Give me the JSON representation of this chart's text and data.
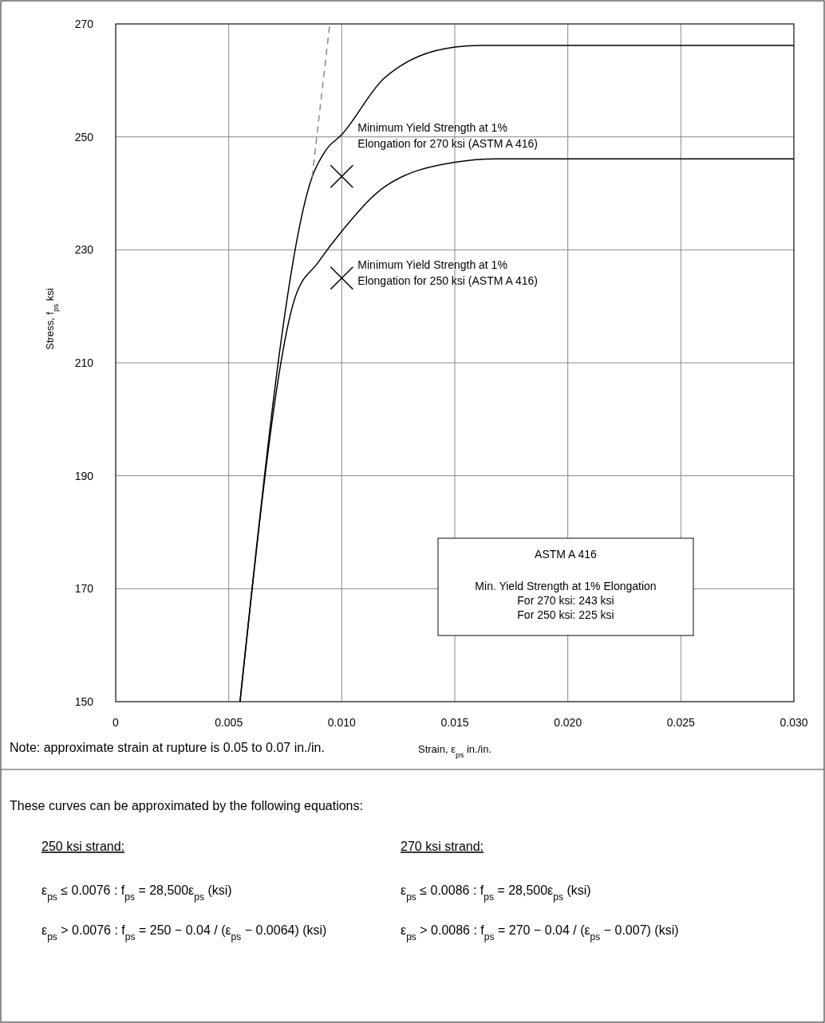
{
  "chart_data": {
    "type": "line",
    "xlabel": "Strain, ε$_{ps}$ in./in.",
    "ylabel": "Stress, f$_{ps}$ ksi",
    "xlim": [
      0,
      0.03
    ],
    "ylim": [
      150,
      270
    ],
    "xticks": [
      0,
      {
        "value": 0.005,
        "label": "0.005"
      },
      {
        "value": 0.01,
        "label": "0.010"
      },
      {
        "value": 0.015,
        "label": "0.015"
      },
      {
        "value": 0.02,
        "label": "0.020"
      },
      {
        "value": 0.025,
        "label": "0.025"
      },
      {
        "value": 0.03,
        "label": "0.030"
      }
    ],
    "yticks": [
      150,
      170,
      190,
      210,
      230,
      250,
      270
    ],
    "grid": true,
    "series": [
      {
        "color": "#000000",
        "line_style": "solid",
        "x": [
          0.0055,
          0.00869,
          0.00929,
          0.01,
          0.01188,
          0.015,
          0.01614,
          0.03
        ],
        "values": [
          150,
          242.9,
          247.6,
          250.4,
          260.4,
          265.9,
          266.2,
          266.2
        ]
      },
      {
        "color": "#000000",
        "line_style": "solid",
        "x": [
          0.0055,
          0.00794,
          0.00894,
          0.01,
          0.01188,
          0.015,
          0.01684,
          0.03
        ],
        "values": [
          150,
          221.6,
          227.7,
          233.3,
          241.1,
          245.5,
          246.1,
          246.1
        ]
      },
      {
        "color": "#888888",
        "line_style": "dashed",
        "x": [
          0.00869,
          0.00947
        ],
        "values": [
          242.9,
          270
        ]
      },
      {
        "type": "scatter",
        "color": "#000000",
        "marker": "cross",
        "x": [
          0.01,
          0.01
        ],
        "values": [
          243,
          225
        ]
      }
    ],
    "annotations": [
      {
        "text": "Minimum Yield Strength at 1%\nElongation for 270 ksi (ASTM A 416)",
        "x": 0.01,
        "y": 243
      },
      {
        "text": "Minimum Yield Strength at 1%\nElongation for 250 ksi (ASTM A 416)",
        "x": 0.01,
        "y": 225
      },
      "ASTM A 416",
      "Min. Yield Strength at 1% Elongation",
      "For 270 ksi:  243 ksi",
      "For 250 ksi:  225 ksi",
      "Note: approximate strain at rupture is 0.05 to 0.07 in./in.",
      "These curves can be approximated by the following equations:",
      "250 ksi strand:",
      "270 ksi strand:",
      "ε$_{ps}$ ≤ 0.0076 :  f$_{ps}$ = 28,500ε$_{ps}$  (ksi)",
      "ε$_{ps}$ ≤ 0.0086 :  f$_{ps}$ = 28,500ε$_{ps}$  (ksi)",
      "ε$_{ps}$ > 0.0076 :  f$_{ps}$ = 250 − 0.04 / (ε$_{ps}$ − 0.0064)  (ksi)",
      "ε$_{ps}$ > 0.0086 :  f$_{ps}$ = 270 − 0.04 / (ε$_{ps}$ − 0.007)  (ksi)"
    ]
  }
}
